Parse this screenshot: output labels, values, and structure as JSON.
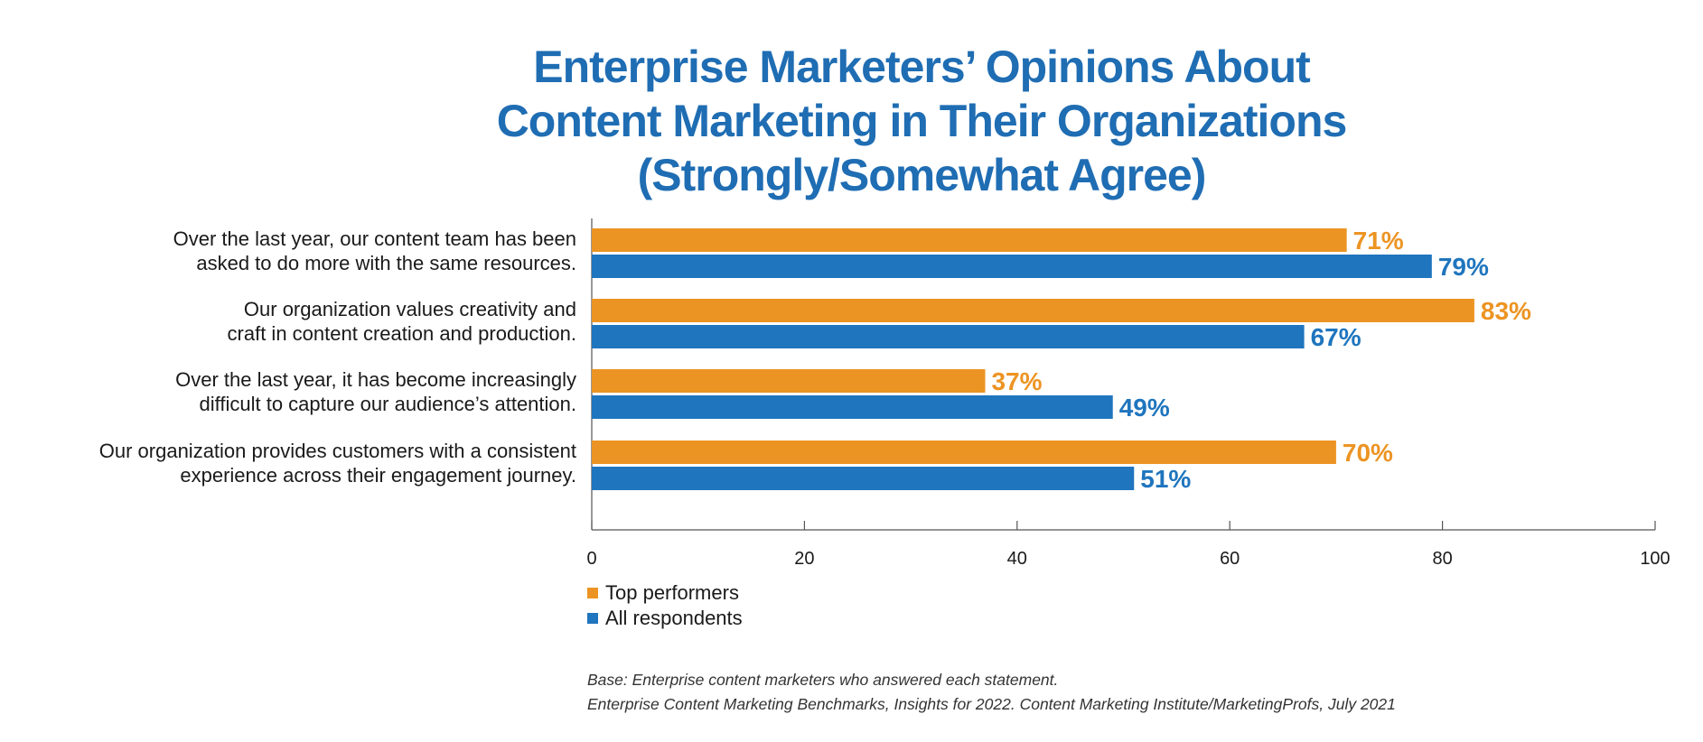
{
  "chart_data": {
    "type": "bar",
    "orientation": "horizontal",
    "title": [
      "Enterprise Marketers’ Opinions About",
      "Content Marketing in Their Organizations",
      "(Strongly/Somewhat Agree)"
    ],
    "categories": [
      [
        "Over the last year, our content team has been",
        "asked to do more with the same resources."
      ],
      [
        "Our organization values creativity and",
        "craft in content creation and production."
      ],
      [
        "Over the last year, it has become increasingly",
        "difficult to capture our audience’s attention."
      ],
      [
        "Our organization provides customers with a consistent",
        "experience across their engagement journey."
      ]
    ],
    "series": [
      {
        "name": "Top performers",
        "color": "#ec9423",
        "values": [
          71,
          83,
          37,
          70
        ],
        "labels": [
          "71%",
          "83%",
          "37%",
          "70%"
        ]
      },
      {
        "name": "All respondents",
        "color": "#1f75be",
        "values": [
          79,
          67,
          49,
          51
        ],
        "labels": [
          "79%",
          "67%",
          "49%",
          "51%"
        ]
      }
    ],
    "xlim": [
      0,
      100
    ],
    "xticks": [
      0,
      20,
      40,
      60,
      80,
      100
    ],
    "xtick_labels": [
      "0",
      "20",
      "40",
      "60",
      "80",
      "100"
    ],
    "grid": false,
    "legend_position": "bottom-left"
  },
  "footnote": {
    "line1": "Base: Enterprise content marketers who answered each statement.",
    "line2": "Enterprise Content Marketing Benchmarks, Insights for 2022. Content Marketing Institute/MarketingProfs, July 2021"
  }
}
